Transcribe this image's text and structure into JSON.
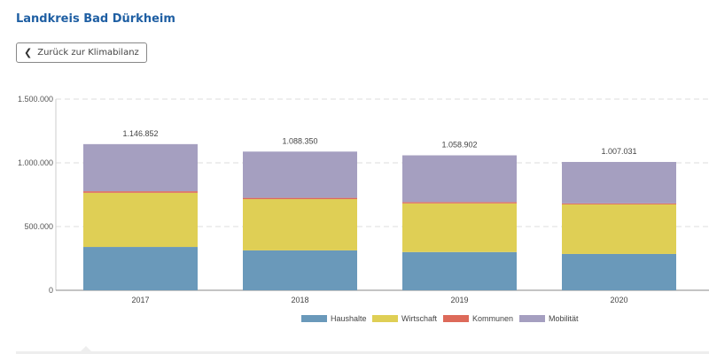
{
  "header": {
    "title": "Landkreis  Bad Dürkheim",
    "back_button": "Zurück zur Klimabilanz",
    "back_icon": "chevron-left-icon"
  },
  "chart_data": {
    "type": "bar",
    "stacked": true,
    "categories": [
      "2017",
      "2018",
      "2019",
      "2020"
    ],
    "totals": [
      "1.146.852",
      "1.088.350",
      "1.058.902",
      "1.007.031"
    ],
    "series": [
      {
        "name": "Haushalte",
        "color": "#6a99ba",
        "values": [
          340000,
          313000,
          300000,
          285000
        ]
      },
      {
        "name": "Wirtschaft",
        "color": "#dfcf55",
        "values": [
          425000,
          402000,
          382000,
          389000
        ]
      },
      {
        "name": "Kommunen",
        "color": "#dd6a5a",
        "values": [
          12000,
          10000,
          10000,
          8000
        ]
      },
      {
        "name": "Mobilität",
        "color": "#a59fc0",
        "values": [
          369852,
          363350,
          366902,
          325031
        ]
      }
    ],
    "yticks": [
      0,
      500000,
      1000000,
      1500000
    ],
    "ytick_labels": [
      "0",
      "500.000",
      "1.000.000",
      "1.500.000"
    ],
    "ylim": [
      0,
      1500000
    ],
    "grid": true,
    "legend": "bottom"
  }
}
